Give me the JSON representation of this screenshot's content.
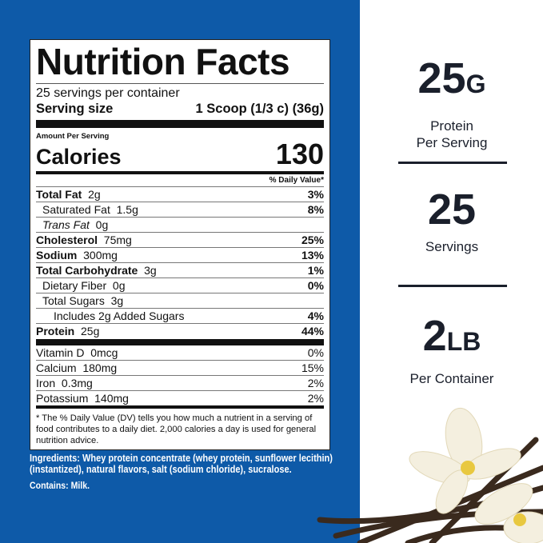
{
  "label": {
    "title": "Nutrition Facts",
    "servings_per_container": "25 servings per container",
    "serving_size_label": "Serving size",
    "serving_size_value": "1 Scoop (1/3 c) (36g)",
    "amount_per_serving": "Amount Per Serving",
    "calories_label": "Calories",
    "calories_value": "130",
    "dv_header": "% Daily Value*",
    "nutrients": [
      {
        "name": "Total Fat",
        "amount": "2g",
        "dv": "3%"
      },
      {
        "name": "Saturated Fat",
        "amount": "1.5g",
        "dv": "8%"
      },
      {
        "name": "Trans Fat",
        "amount": "0g",
        "dv": ""
      },
      {
        "name": "Cholesterol",
        "amount": "75mg",
        "dv": "25%"
      },
      {
        "name": "Sodium",
        "amount": "300mg",
        "dv": "13%"
      },
      {
        "name": "Total Carbohydrate",
        "amount": "3g",
        "dv": "1%"
      },
      {
        "name": "Dietary Fiber",
        "amount": "0g",
        "dv": "0%"
      },
      {
        "name": "Total Sugars",
        "amount": "3g",
        "dv": ""
      },
      {
        "name": "Includes 2g Added Sugars",
        "amount": "",
        "dv": "4%"
      },
      {
        "name": "Protein",
        "amount": "25g",
        "dv": "44%"
      }
    ],
    "vitamins": [
      {
        "name": "Vitamin D",
        "amount": "0mcg",
        "dv": "0%"
      },
      {
        "name": "Calcium",
        "amount": "180mg",
        "dv": "15%"
      },
      {
        "name": "Iron",
        "amount": "0.3mg",
        "dv": "2%"
      },
      {
        "name": "Potassium",
        "amount": "140mg",
        "dv": "2%"
      }
    ],
    "footnote": "* The % Daily Value (DV) tells you how much a nutrient in a serving of food contributes to a daily diet. 2,000 calories a day is used for general nutrition advice."
  },
  "ingredients": "Ingredients: Whey protein concentrate (whey protein, sunflower lecithin) (instantized), natural flavors, salt (sodium chloride), sucralose.",
  "contains": "Contains: Milk.",
  "stats": [
    {
      "value": "25",
      "unit": "G",
      "line1": "Protein",
      "line2": "Per Serving"
    },
    {
      "value": "25",
      "unit": "",
      "line1": "Servings",
      "line2": ""
    },
    {
      "value": "2",
      "unit": "LB",
      "line1": "Per Container",
      "line2": ""
    }
  ],
  "colors": {
    "panel": "#0e5aa8",
    "text": "#1a1f2b"
  }
}
